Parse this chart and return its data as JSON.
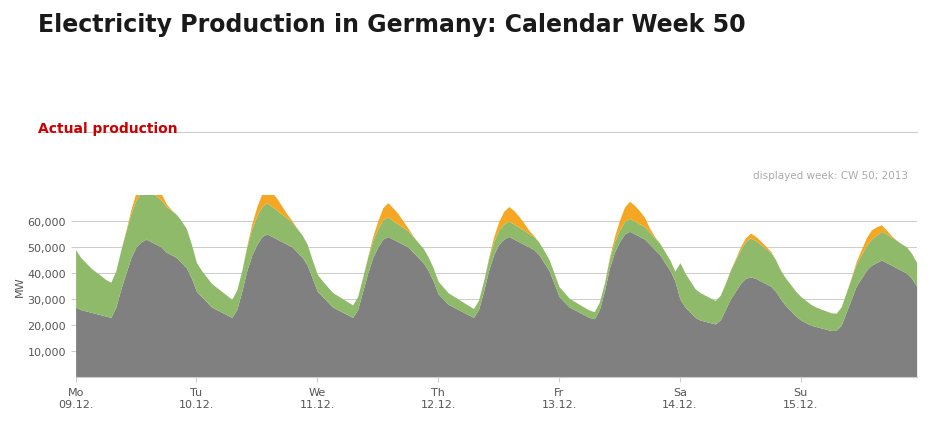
{
  "title": "Electricity Production in Germany: Calendar Week 50",
  "subtitle": "Actual production",
  "annotation": "displayed week: CW 50; 2013",
  "ylabel": "MW",
  "background_color": "#ffffff",
  "title_color": "#1a1a1a",
  "subtitle_color": "#cc0000",
  "annotation_color": "#aaaaaa",
  "ylim": [
    0,
    70000
  ],
  "yticks": [
    10000,
    20000,
    30000,
    40000,
    50000,
    60000
  ],
  "colors": {
    "gray": "#808080",
    "green": "#8fba6a",
    "yellow": "#f5a623"
  },
  "x_labels": [
    "Mo\n09.12.",
    "Tu\n10.12.",
    "We\n11.12.",
    "Th\n12.12.",
    "Fr\n13.12.",
    "Sa\n14.12.",
    "Su\n15.12."
  ],
  "x_ticks": [
    0,
    24,
    48,
    72,
    96,
    120,
    144
  ],
  "n_points": 168,
  "gray_data": [
    27000,
    26000,
    25500,
    25000,
    24500,
    24000,
    23500,
    23000,
    27000,
    34000,
    40000,
    46000,
    50000,
    52000,
    53000,
    52000,
    51000,
    50000,
    48000,
    47000,
    46000,
    44000,
    42000,
    38000,
    33000,
    31000,
    29000,
    27000,
    26000,
    25000,
    24000,
    23000,
    26000,
    33000,
    41000,
    47000,
    51000,
    54000,
    55000,
    54000,
    53000,
    52000,
    51000,
    50000,
    48000,
    46000,
    43000,
    38000,
    33000,
    31000,
    29000,
    27000,
    26000,
    25000,
    24000,
    23000,
    26000,
    33000,
    40000,
    46000,
    50000,
    53000,
    54000,
    53000,
    52000,
    51000,
    50000,
    48000,
    46000,
    44000,
    41000,
    37000,
    32000,
    30000,
    28000,
    27000,
    26000,
    25000,
    24000,
    23000,
    26000,
    33000,
    41000,
    47000,
    51000,
    53000,
    54000,
    53000,
    52000,
    51000,
    50000,
    49000,
    47000,
    44000,
    41000,
    36000,
    31000,
    29000,
    27000,
    26000,
    25000,
    24000,
    23000,
    22500,
    26000,
    33000,
    42000,
    48000,
    52000,
    55000,
    56000,
    55000,
    54000,
    53000,
    51000,
    49000,
    47000,
    44000,
    41000,
    37000,
    30000,
    27000,
    25000,
    23000,
    22000,
    21500,
    21000,
    20500,
    22000,
    26000,
    30000,
    33000,
    36000,
    38000,
    38500,
    38000,
    37000,
    36000,
    35000,
    33000,
    30000,
    27500,
    25500,
    23500,
    22000,
    21000,
    20000,
    19500,
    19000,
    18500,
    18000,
    18000,
    20000,
    25000,
    30000,
    35000,
    38000,
    41000,
    43000,
    44000,
    45000,
    44000,
    43000,
    42000,
    41000,
    40000,
    38000,
    35000
  ],
  "green_data": [
    22000,
    20000,
    18500,
    17000,
    16000,
    15000,
    14000,
    13500,
    14000,
    15000,
    16000,
    17000,
    18000,
    19000,
    19500,
    19000,
    18500,
    18000,
    17500,
    17000,
    16500,
    16000,
    15000,
    13000,
    11000,
    10000,
    9500,
    9000,
    8500,
    8000,
    7500,
    7000,
    7500,
    8000,
    9000,
    10000,
    11000,
    11500,
    12000,
    11500,
    11000,
    10500,
    10000,
    9500,
    9000,
    8500,
    8000,
    7000,
    6500,
    6000,
    5800,
    5600,
    5400,
    5200,
    5000,
    4800,
    5000,
    5500,
    6000,
    6500,
    7000,
    7500,
    7500,
    7000,
    6800,
    6500,
    6200,
    6000,
    5800,
    5500,
    5200,
    5000,
    4800,
    4600,
    4400,
    4200,
    4000,
    3800,
    3600,
    3400,
    3600,
    4000,
    4500,
    5000,
    5500,
    5800,
    6000,
    5800,
    5600,
    5400,
    5200,
    5000,
    4800,
    4600,
    4200,
    4000,
    3800,
    3600,
    3400,
    3200,
    3000,
    2900,
    2800,
    2700,
    2900,
    3200,
    3600,
    4000,
    4500,
    4800,
    5000,
    4900,
    4800,
    4700,
    4600,
    4500,
    4400,
    4200,
    4000,
    3800,
    14000,
    13000,
    12000,
    11000,
    10500,
    10000,
    9500,
    9000,
    9500,
    10000,
    11000,
    12000,
    13000,
    14000,
    15000,
    14500,
    14000,
    13500,
    13000,
    12000,
    11000,
    10500,
    10000,
    9500,
    9000,
    8500,
    8000,
    7500,
    7200,
    7000,
    6800,
    6600,
    7000,
    7500,
    8000,
    8500,
    9000,
    9500,
    10000,
    10500,
    11000,
    11000,
    10800,
    10500,
    10200,
    10000,
    9500,
    9000
  ],
  "yellow_data": [
    0,
    0,
    0,
    0,
    0,
    0,
    0,
    0,
    0,
    0,
    500,
    1500,
    3000,
    4500,
    5500,
    5000,
    4000,
    2500,
    1000,
    300,
    0,
    0,
    0,
    0,
    0,
    0,
    0,
    0,
    0,
    0,
    0,
    0,
    0,
    0,
    500,
    2000,
    3500,
    5000,
    6000,
    5500,
    4500,
    3000,
    1500,
    500,
    0,
    0,
    0,
    0,
    0,
    0,
    0,
    0,
    0,
    0,
    0,
    0,
    0,
    0,
    400,
    1500,
    3000,
    4500,
    5500,
    5000,
    4000,
    2500,
    1000,
    200,
    0,
    0,
    0,
    0,
    0,
    0,
    0,
    0,
    0,
    0,
    0,
    0,
    0,
    0,
    500,
    1800,
    3200,
    4800,
    5500,
    5200,
    4200,
    2800,
    1200,
    300,
    0,
    0,
    0,
    0,
    0,
    0,
    0,
    0,
    0,
    0,
    0,
    0,
    0,
    0,
    600,
    2000,
    3800,
    5500,
    6500,
    6000,
    5000,
    3500,
    1500,
    400,
    0,
    0,
    0,
    0,
    0,
    0,
    0,
    0,
    0,
    0,
    0,
    0,
    0,
    0,
    200,
    500,
    1000,
    1500,
    1800,
    1600,
    1300,
    900,
    400,
    100,
    0,
    0,
    0,
    0,
    0,
    0,
    0,
    0,
    0,
    0,
    0,
    0,
    0,
    0,
    300,
    1000,
    2000,
    3000,
    3500,
    3200,
    2500,
    1500,
    500,
    100,
    0,
    0,
    0,
    0
  ]
}
